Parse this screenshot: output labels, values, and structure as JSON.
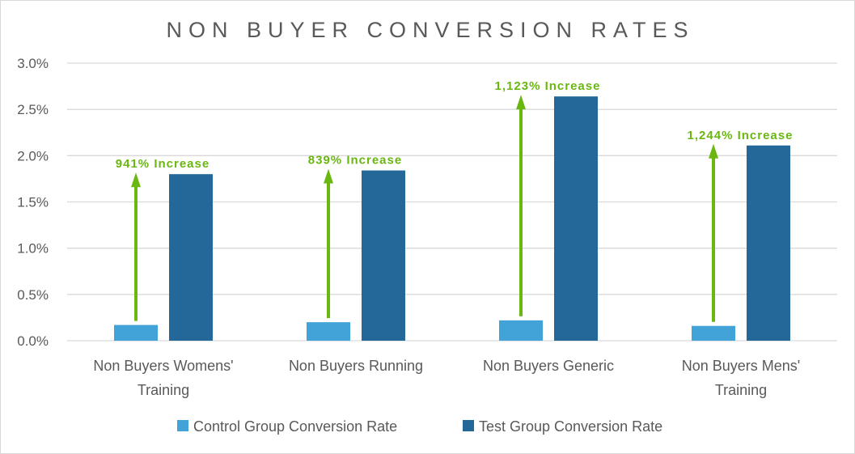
{
  "chart_data": {
    "type": "bar",
    "title": "NON BUYER CONVERSION RATES",
    "categories": [
      [
        "Non Buyers Womens'",
        "Training"
      ],
      [
        "Non Buyers Running"
      ],
      [
        "Non Buyers Generic"
      ],
      [
        "Non Buyers Mens'",
        "Training"
      ]
    ],
    "series": [
      {
        "name": "Control Group Conversion Rate",
        "color": "#41a3d8",
        "values": [
          0.17,
          0.2,
          0.22,
          0.16
        ]
      },
      {
        "name": "Test Group Conversion Rate",
        "color": "#236899",
        "values": [
          1.8,
          1.84,
          2.64,
          2.11
        ]
      }
    ],
    "annotations": [
      "941% Increase",
      "839% Increase",
      "1,123% Increase",
      "1,244% Increase"
    ],
    "annotation_color": "#6ab712",
    "ylim": [
      0,
      3.0
    ],
    "yticks": [
      "0.0%",
      "0.5%",
      "1.0%",
      "1.5%",
      "2.0%",
      "2.5%",
      "3.0%"
    ],
    "grid": true,
    "legend": "bottom",
    "xlabel": "",
    "ylabel": ""
  }
}
